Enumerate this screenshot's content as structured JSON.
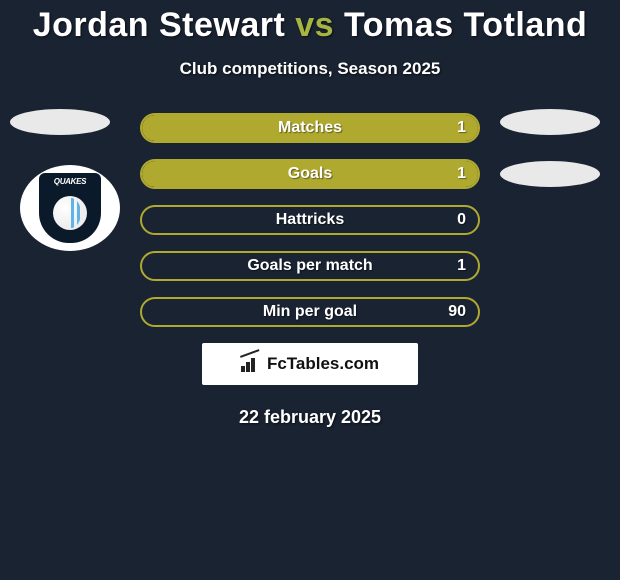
{
  "colors": {
    "background": "#1a2332",
    "accent": "#a6b53f",
    "fill": "#b0a92f",
    "border": "#b0a92f",
    "text": "#ffffff"
  },
  "header": {
    "player1": "Jordan Stewart",
    "vs": "vs",
    "player2": "Tomas Totland",
    "subtitle": "Club competitions, Season 2025"
  },
  "badge": {
    "label": "QUAKES"
  },
  "stats": [
    {
      "label": "Matches",
      "value": "1",
      "fill_pct": 100
    },
    {
      "label": "Goals",
      "value": "1",
      "fill_pct": 100
    },
    {
      "label": "Hattricks",
      "value": "0",
      "fill_pct": 0
    },
    {
      "label": "Goals per match",
      "value": "1",
      "fill_pct": 0
    },
    {
      "label": "Min per goal",
      "value": "90",
      "fill_pct": 0
    }
  ],
  "attribution": {
    "text": "FcTables.com"
  },
  "date": "22 february 2025"
}
